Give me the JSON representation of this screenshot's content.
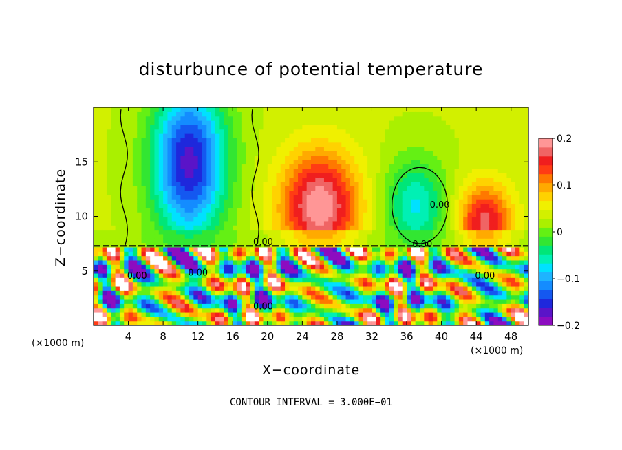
{
  "chart_data": {
    "type": "heatmap",
    "title": "disturbunce of potential temperature",
    "xlabel": "X−coordinate",
    "ylabel": "Z−coordinate",
    "x_unit": "(×1000 m)",
    "x_ticks": [
      4,
      8,
      12,
      16,
      20,
      24,
      28,
      32,
      36,
      40,
      44,
      48
    ],
    "y_ticks": [
      5,
      10,
      15
    ],
    "xlim": [
      0,
      50
    ],
    "ylim": [
      0,
      20
    ],
    "contour_interval": "CONTOUR INTERVAL = 3.000E−01",
    "contour_labels": [
      {
        "text": "0.00",
        "x": 19.5,
        "z": 7.6
      },
      {
        "text": "0.00",
        "x": 37.8,
        "z": 7.4
      },
      {
        "text": "0.00",
        "x": 19.5,
        "z": 1.7
      },
      {
        "text": "0.00",
        "x": 39.8,
        "z": 11.0
      },
      {
        "text": "0.00",
        "x": 45.0,
        "z": 4.5
      },
      {
        "text": "0.00",
        "x": 5.0,
        "z": 4.5
      },
      {
        "text": "0.00",
        "x": 12.0,
        "z": 4.8
      }
    ],
    "colorbar": {
      "min": -0.2,
      "max": 0.2,
      "ticks": [
        "0.2",
        "0.1",
        "0",
        "−0.1",
        "−0.2"
      ],
      "colors": [
        "#8c0cc0",
        "#5a14c8",
        "#1e28dc",
        "#1458f0",
        "#148cff",
        "#1eb4ff",
        "#00e1ff",
        "#00f0b4",
        "#00e678",
        "#32e632",
        "#64f014",
        "#aaf000",
        "#d2f000",
        "#f0f000",
        "#ffd200",
        "#ffaa00",
        "#ff7800",
        "#ff3c14",
        "#f01e1e",
        "#f06464",
        "#ff9696"
      ]
    },
    "features": [
      {
        "x": 11,
        "z": 15,
        "value": -0.2,
        "sx": 3.0,
        "sz": 5.0
      },
      {
        "x": 26,
        "z": 11,
        "value": 0.17,
        "sx": 3.2,
        "sz": 3.5
      },
      {
        "x": 37,
        "z": 11,
        "value": -0.1,
        "sx": 2.5,
        "sz": 3.0
      },
      {
        "x": 45,
        "z": 9.5,
        "value": 0.14,
        "sx": 2.2,
        "sz": 2.5
      }
    ]
  }
}
